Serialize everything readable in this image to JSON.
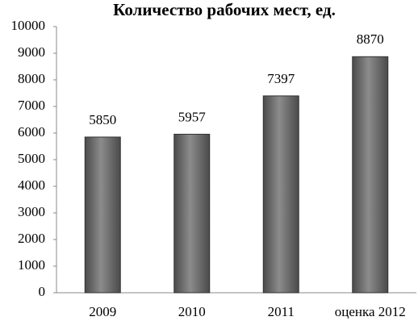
{
  "chart_data": {
    "type": "bar",
    "title": "Количество рабочих мест, ед.",
    "categories": [
      "2009",
      "2010",
      "2011",
      "оценка 2012"
    ],
    "values": [
      5850,
      5957,
      7397,
      8870
    ],
    "color": "#4a4a4a",
    "ylim": [
      0,
      10000
    ],
    "yticks": [
      0,
      1000,
      2000,
      3000,
      4000,
      5000,
      6000,
      7000,
      8000,
      9000,
      10000
    ],
    "grid": false
  }
}
